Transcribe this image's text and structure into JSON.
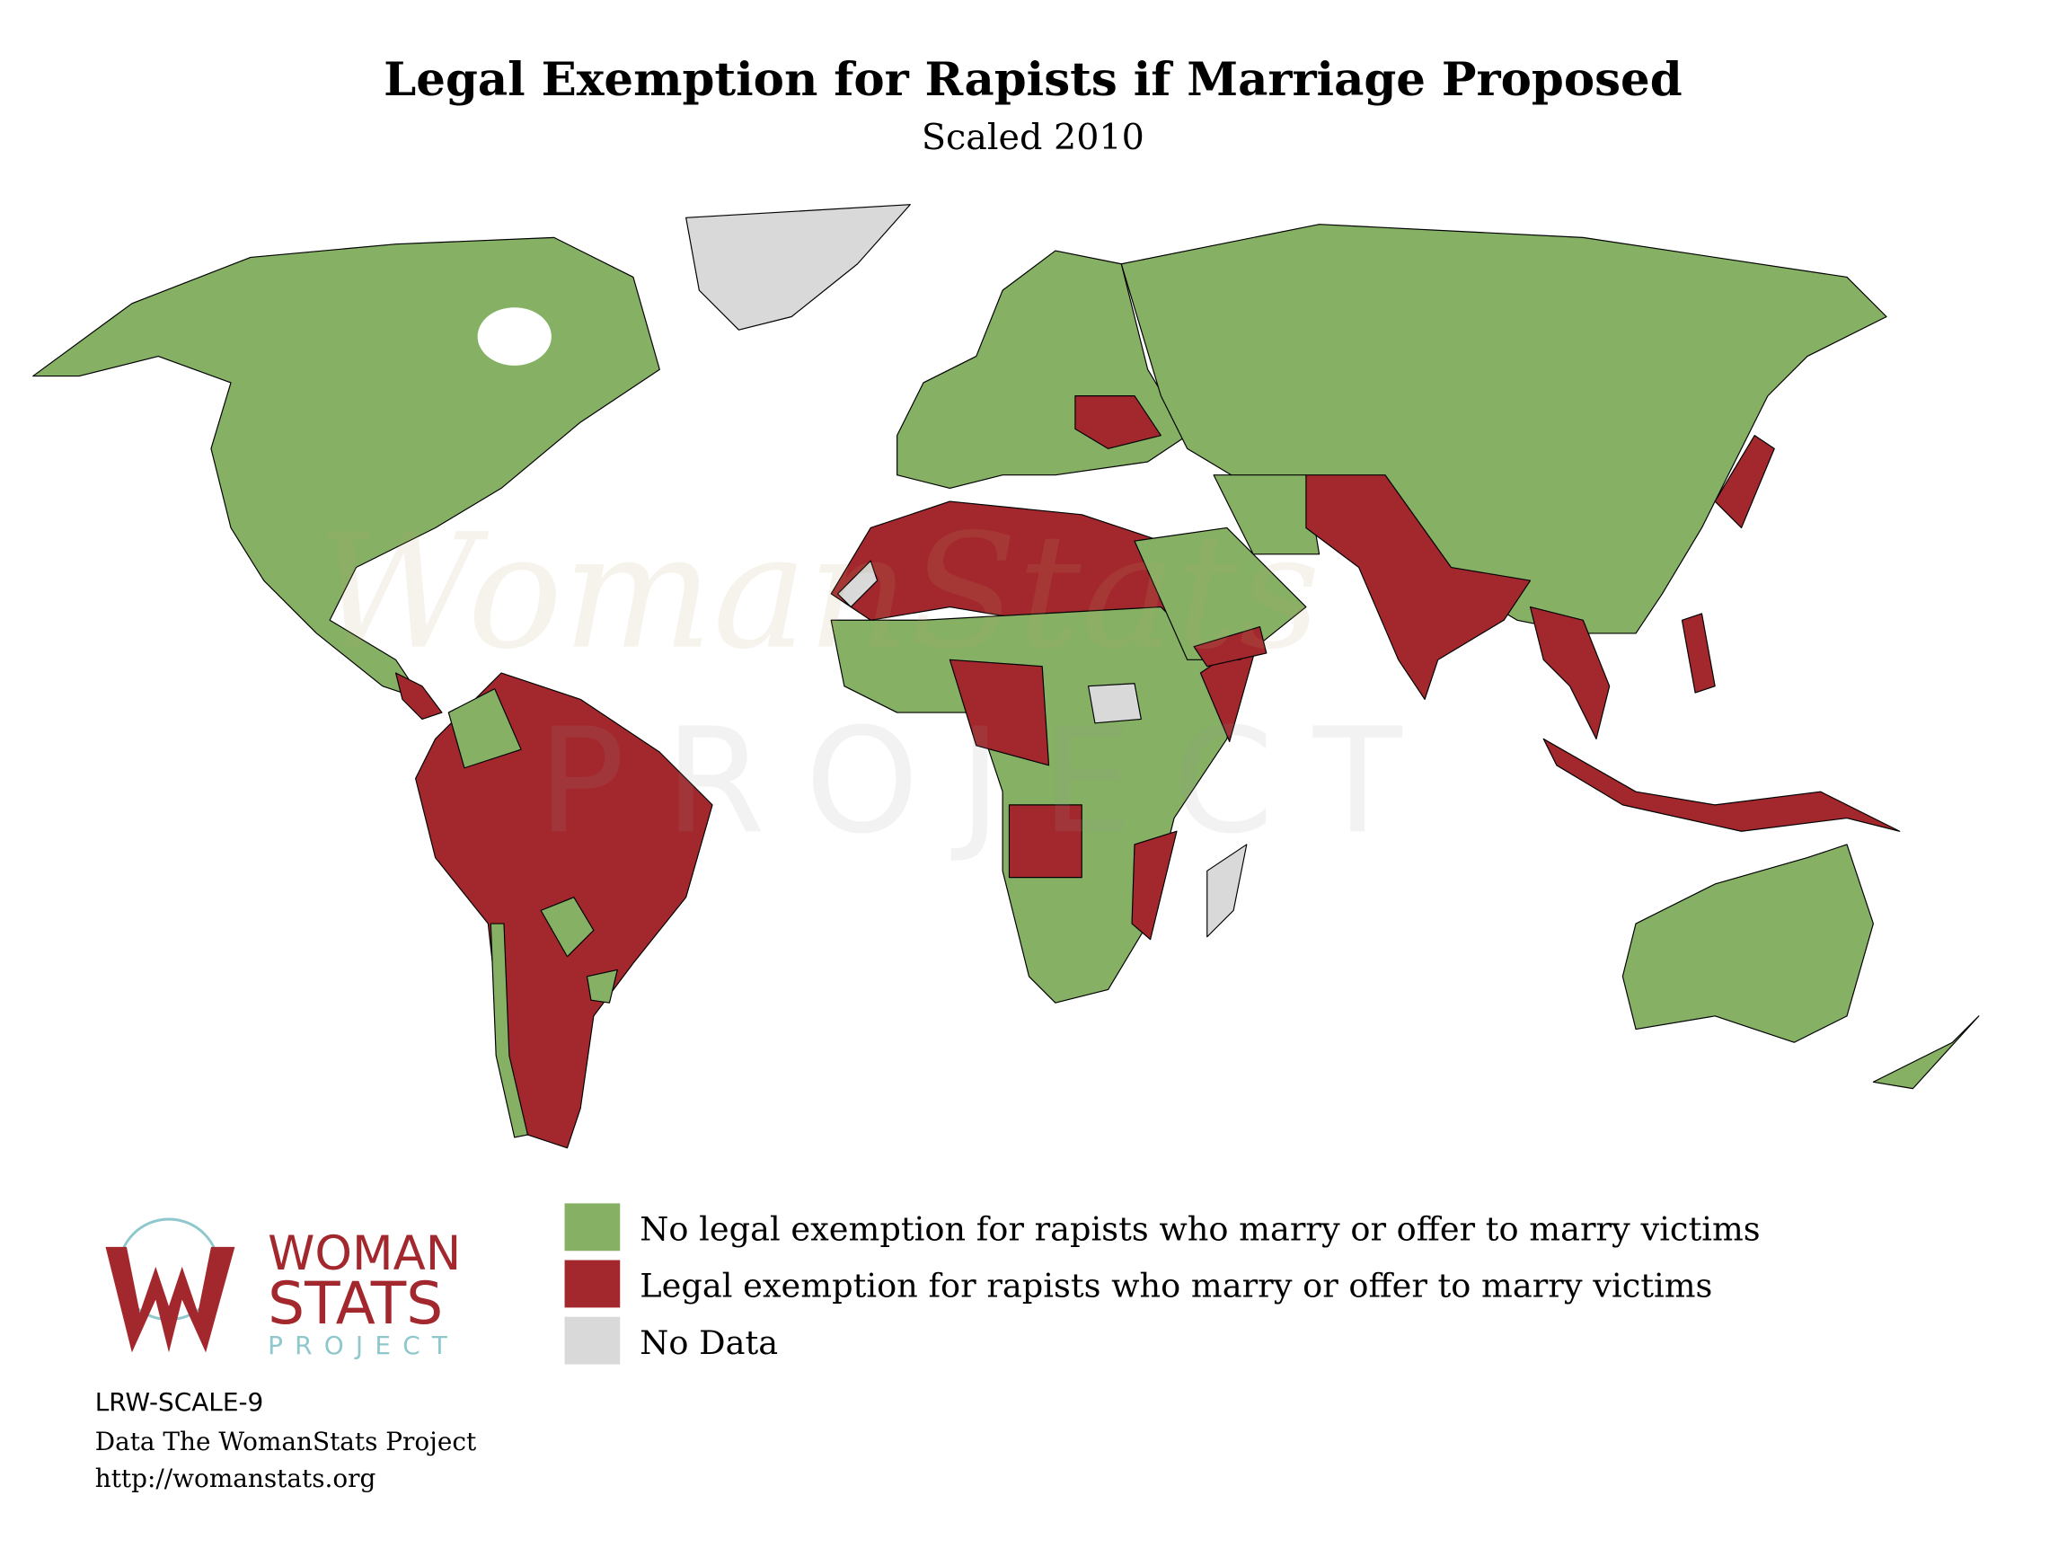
{
  "header": {
    "title": "Legal Exemption for Rapists if Marriage Proposed",
    "subtitle": "Scaled 2010"
  },
  "watermark": {
    "line1": "WomanStats",
    "line2": "PROJECT"
  },
  "legend": [
    {
      "label": "No legal exemption for rapists who marry or offer to marry victims",
      "color": "#86b064"
    },
    {
      "label": "Legal exemption for rapists who marry or offer to marry victims",
      "color": "#a3282d"
    },
    {
      "label": "No Data",
      "color": "#d9d9d9"
    }
  ],
  "logo": {
    "line1": "WOMAN",
    "line2": "STATS",
    "line3": "PROJECT"
  },
  "footer": {
    "code": "LRW-SCALE-9",
    "source": "Data The WomanStats Project",
    "url": "http://womanstats.org"
  }
}
